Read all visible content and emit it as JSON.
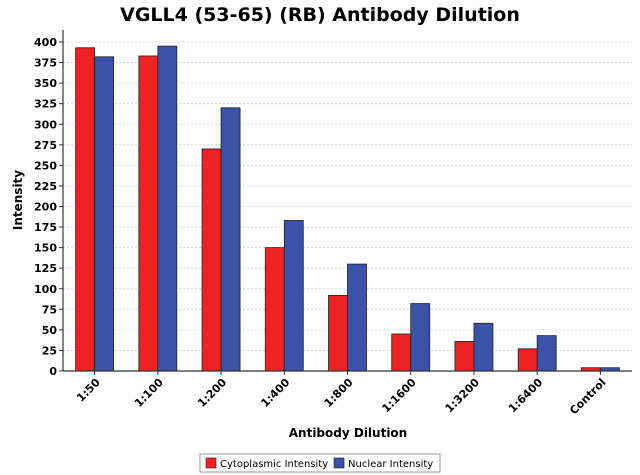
{
  "chart_data": {
    "type": "bar",
    "title": "VGLL4 (53-65) (RB) Antibody Dilution",
    "xlabel": "Antibody Dilution",
    "ylabel": "Intensity",
    "categories": [
      "1:50",
      "1:100",
      "1:200",
      "1:400",
      "1:800",
      "1:1600",
      "1:3200",
      "1:6400",
      "Control"
    ],
    "series": [
      {
        "name": "Cytoplasmic Intensity",
        "color": "#ee2222",
        "values": [
          393,
          383,
          270,
          150,
          92,
          45,
          36,
          27,
          4
        ]
      },
      {
        "name": "Nuclear Intensity",
        "color": "#3a52a8",
        "values": [
          382,
          395,
          320,
          183,
          130,
          82,
          58,
          43,
          4
        ]
      }
    ],
    "ylim": [
      0,
      400
    ],
    "yticks": [
      0,
      25,
      50,
      75,
      100,
      125,
      150,
      175,
      200,
      225,
      250,
      275,
      300,
      325,
      350,
      375,
      400
    ],
    "grid": "horizontal dashed",
    "legend_position": "bottom-center"
  }
}
